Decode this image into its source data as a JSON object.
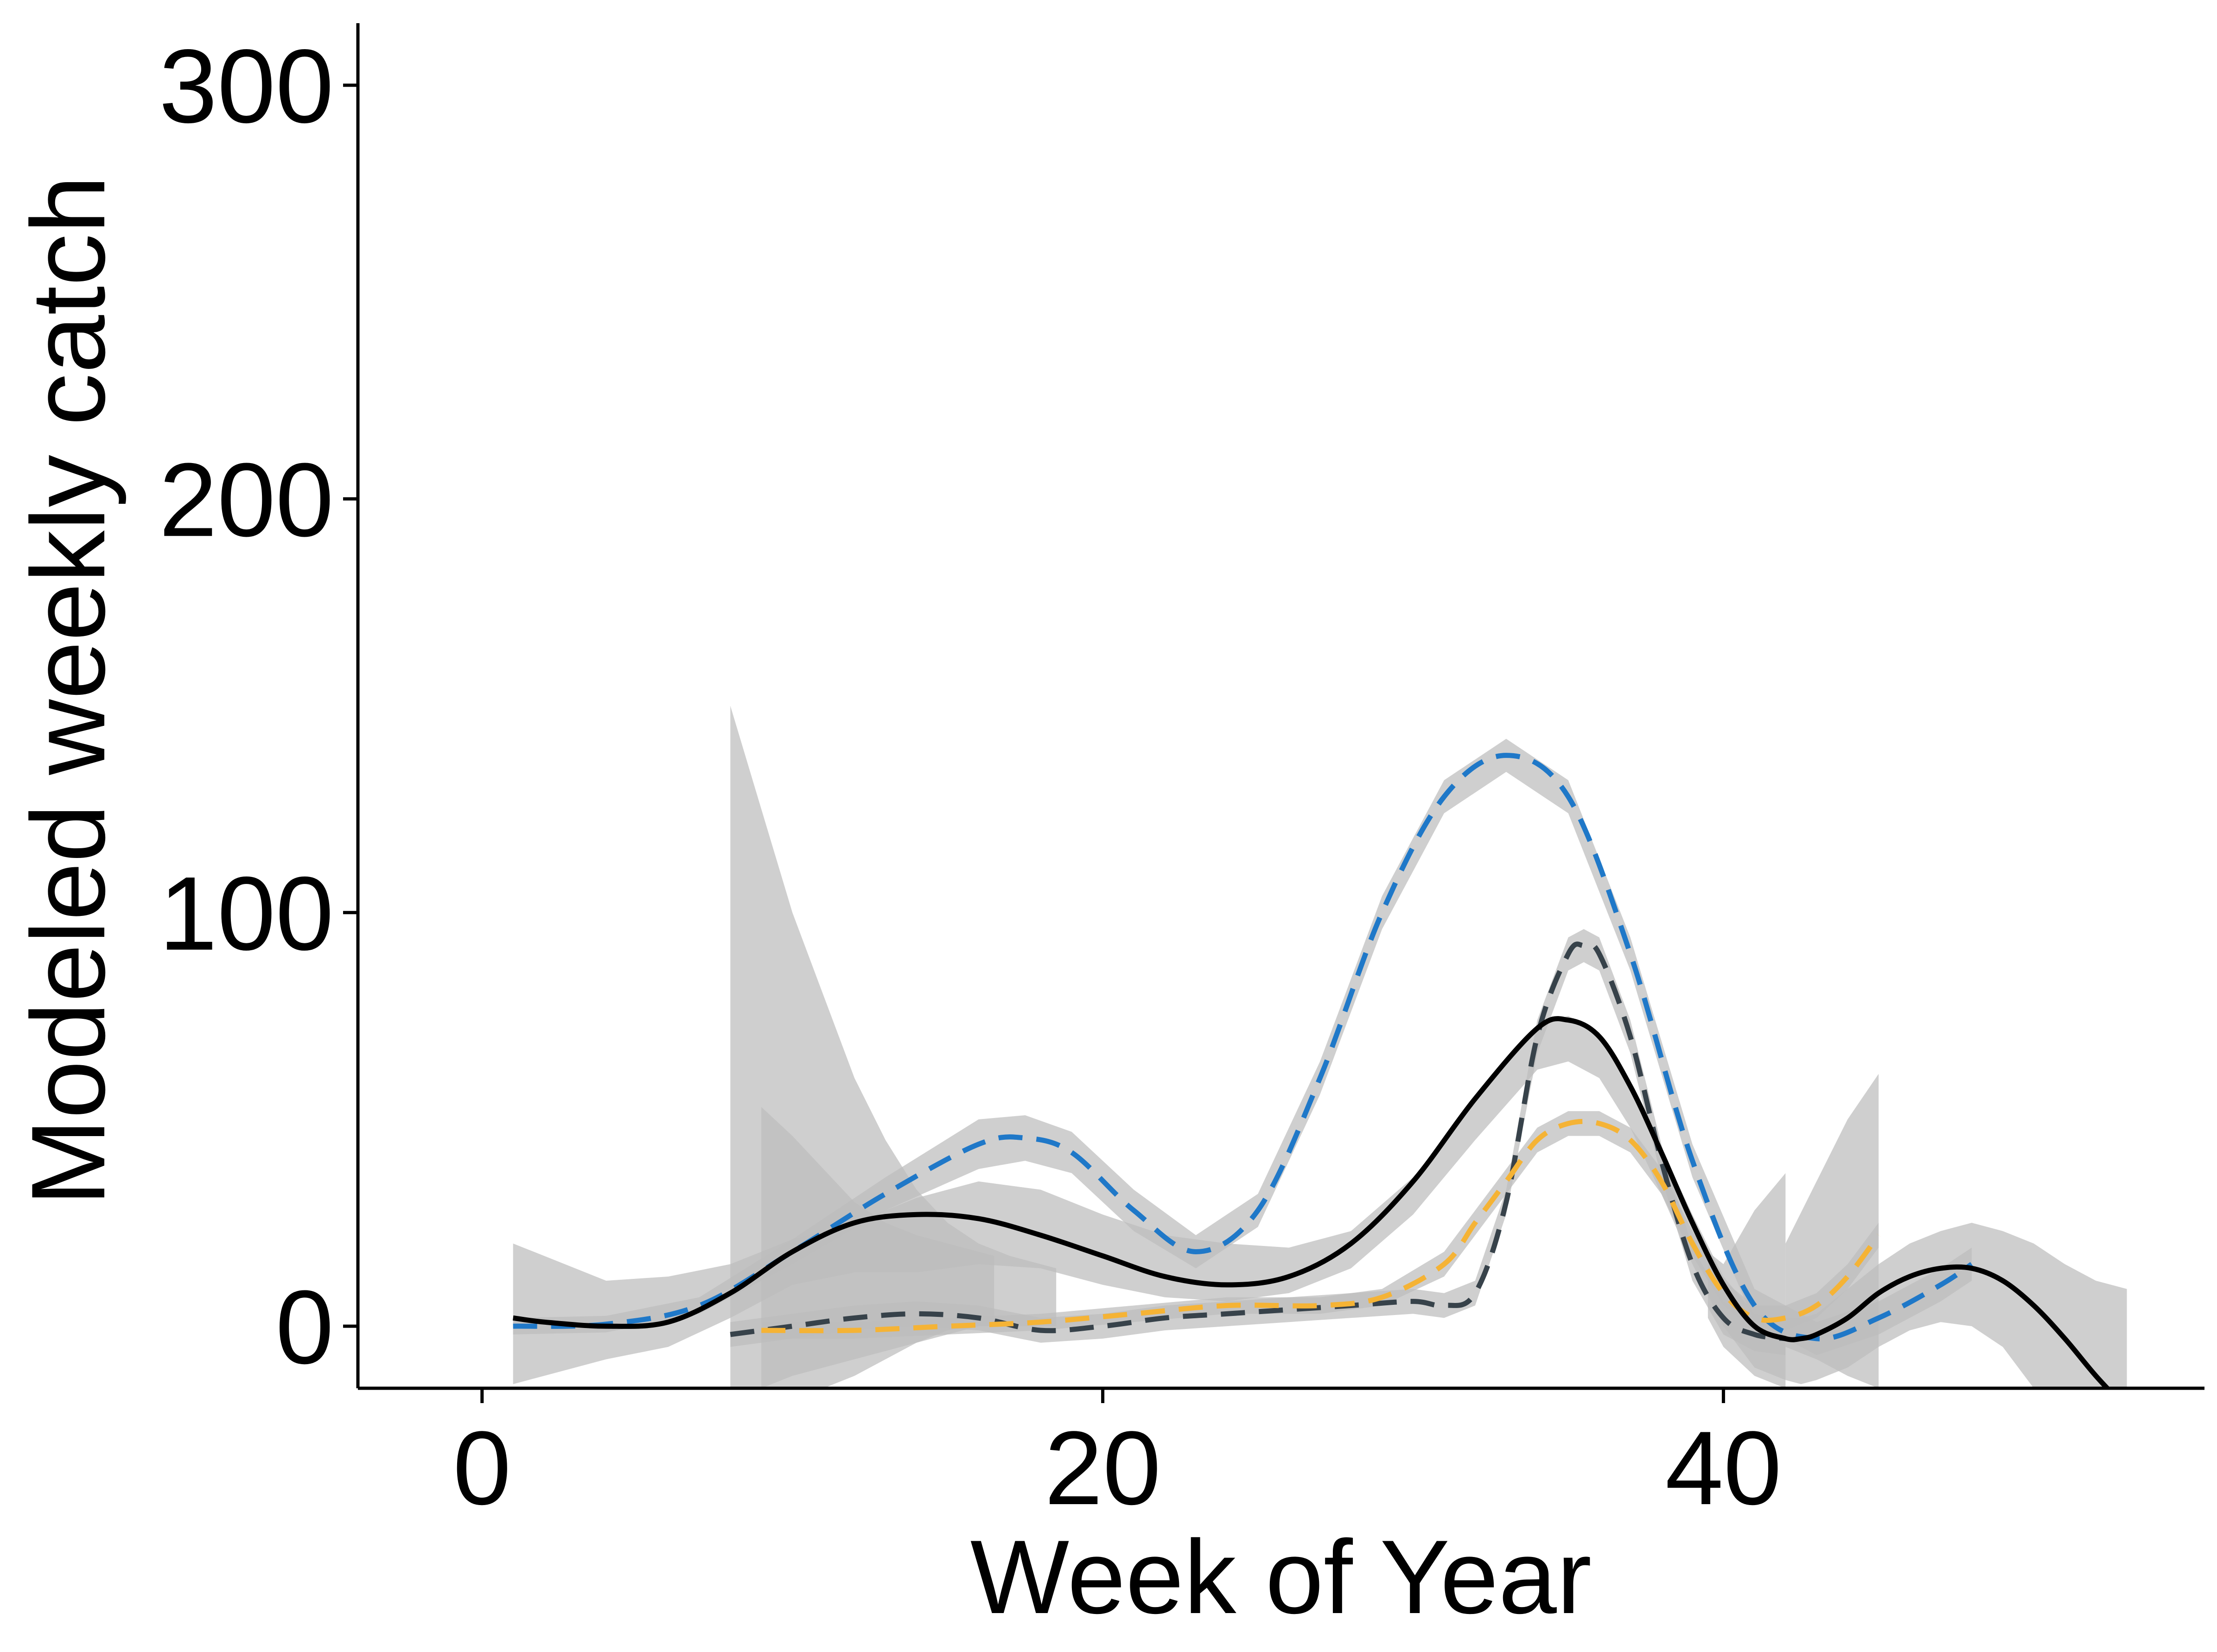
{
  "colors": {
    "ribbon": "#bdbdbd",
    "axis": "#000000",
    "series_blue": "#1f78c8",
    "series_dark": "#37424a",
    "series_orange": "#f5b335",
    "series_black": "#000000"
  },
  "chart_data": {
    "type": "line",
    "title": "",
    "xlabel": "Week of Year",
    "ylabel": "Modeled weekly catch",
    "xlim": [
      -4,
      55.5
    ],
    "ylim": [
      -15,
      315
    ],
    "x_ticks": [
      0,
      20,
      40
    ],
    "y_ticks": [
      0,
      100,
      200,
      300
    ],
    "grid": false,
    "legend": "none",
    "series": [
      {
        "color": "#1f78c8",
        "line": "dashed",
        "x": [
          1,
          4,
          7,
          10,
          13,
          16,
          17.5,
          19,
          21,
          23,
          25,
          27,
          29,
          31,
          33,
          35,
          37,
          39,
          41,
          43,
          45,
          47,
          48
        ],
        "y": [
          0,
          0.5,
          5,
          18,
          32,
          44,
          45.5,
          42,
          28,
          18,
          28,
          60,
          100,
          128,
          138,
          128,
          90,
          40,
          5,
          -3,
          2,
          10,
          15
        ],
        "band": [
          [
            1,
            -2,
            2
          ],
          [
            4,
            -1.5,
            2.5
          ],
          [
            7,
            3,
            7
          ],
          [
            10,
            15,
            21
          ],
          [
            13,
            28,
            36
          ],
          [
            16,
            38,
            50
          ],
          [
            17.5,
            40,
            51
          ],
          [
            19,
            37,
            47
          ],
          [
            21,
            23,
            33
          ],
          [
            23,
            14,
            22
          ],
          [
            25,
            24,
            32
          ],
          [
            27,
            56,
            64
          ],
          [
            29,
            96,
            104
          ],
          [
            31,
            124,
            132
          ],
          [
            33,
            134,
            142
          ],
          [
            35,
            124,
            132
          ],
          [
            37,
            86,
            94
          ],
          [
            39,
            36,
            44
          ],
          [
            41,
            1,
            9
          ],
          [
            43,
            -7,
            1
          ],
          [
            45,
            -2,
            6
          ],
          [
            47,
            6,
            14
          ],
          [
            48,
            11,
            19
          ]
        ]
      },
      {
        "color": "#37424a",
        "line": "dashed",
        "x": [
          8,
          10,
          12,
          14,
          16,
          18,
          20,
          22,
          24,
          26,
          28,
          30,
          31,
          32,
          33,
          34,
          35,
          35.5,
          36,
          37,
          38,
          39,
          40,
          41,
          42
        ],
        "y": [
          -2,
          0,
          2,
          3,
          2,
          -1,
          0,
          2,
          3,
          4,
          5,
          6,
          5,
          8,
          30,
          70,
          90,
          92,
          90,
          70,
          40,
          15,
          2,
          -2,
          -3
        ],
        "band": [
          [
            8,
            -5,
            1
          ],
          [
            10,
            -3,
            3
          ],
          [
            12,
            -1,
            5
          ],
          [
            14,
            0,
            6
          ],
          [
            16,
            -1,
            5
          ],
          [
            18,
            -4,
            2
          ],
          [
            20,
            -3,
            3
          ],
          [
            22,
            -1,
            5
          ],
          [
            24,
            0,
            6
          ],
          [
            26,
            1,
            7
          ],
          [
            28,
            2,
            8
          ],
          [
            30,
            3,
            9
          ],
          [
            31,
            2,
            8
          ],
          [
            32,
            5,
            11
          ],
          [
            33,
            27,
            33
          ],
          [
            34,
            66,
            74
          ],
          [
            35,
            86,
            94
          ],
          [
            35.5,
            88,
            96
          ],
          [
            36,
            86,
            94
          ],
          [
            37,
            66,
            74
          ],
          [
            38,
            36,
            44
          ],
          [
            39,
            11,
            19
          ],
          [
            40,
            -2,
            6
          ],
          [
            41,
            -6,
            2
          ],
          [
            42,
            -7,
            1
          ]
        ]
      },
      {
        "color": "#f5b335",
        "line": "dashed",
        "x": [
          9,
          12,
          15,
          18,
          21,
          24,
          27,
          29,
          31,
          32,
          33,
          34,
          35,
          36,
          37,
          38,
          39,
          40,
          41,
          42,
          43,
          44,
          45
        ],
        "y": [
          -1,
          -1,
          0,
          1,
          3,
          5,
          5,
          7,
          15,
          25,
          35,
          45,
          49,
          49,
          45,
          35,
          20,
          8,
          2,
          2,
          5,
          12,
          22
        ],
        "band": [
          [
            9,
            -3,
            1
          ],
          [
            12,
            -3,
            1
          ],
          [
            15,
            -2,
            2
          ],
          [
            18,
            -1,
            3
          ],
          [
            21,
            1,
            5
          ],
          [
            24,
            3,
            7
          ],
          [
            27,
            3,
            7
          ],
          [
            29,
            5,
            9
          ],
          [
            31,
            12,
            18
          ],
          [
            32,
            22,
            28
          ],
          [
            33,
            32,
            38
          ],
          [
            34,
            42,
            48
          ],
          [
            35,
            46,
            52
          ],
          [
            36,
            46,
            52
          ],
          [
            37,
            42,
            48
          ],
          [
            38,
            32,
            38
          ],
          [
            39,
            17,
            23
          ],
          [
            40,
            5,
            11
          ],
          [
            41,
            -1,
            5
          ],
          [
            42,
            -1,
            5
          ],
          [
            43,
            2,
            8
          ],
          [
            44,
            9,
            15
          ],
          [
            45,
            19,
            25
          ]
        ]
      },
      {
        "color": "#000000",
        "line": "solid",
        "x": [
          1,
          2,
          4,
          6,
          8,
          10,
          12,
          14,
          16,
          18,
          20,
          22,
          24,
          26,
          28,
          30,
          32,
          34,
          35,
          36,
          37,
          38,
          39,
          40,
          41,
          42,
          42.5,
          43,
          44,
          45,
          46,
          47,
          48,
          49,
          50,
          51,
          52,
          53
        ],
        "y": [
          2,
          1,
          0,
          1,
          8,
          18,
          25,
          27,
          26,
          22,
          17,
          12,
          10,
          12,
          20,
          35,
          55,
          72,
          74,
          70,
          58,
          42,
          25,
          10,
          0,
          -3,
          -3,
          -2,
          2,
          8,
          12,
          14,
          14,
          11,
          5,
          -3,
          -12,
          -20
        ],
        "band": [
          [
            1,
            -14,
            20
          ],
          [
            2,
            -12,
            17
          ],
          [
            4,
            -8,
            11
          ],
          [
            6,
            -5,
            12
          ],
          [
            8,
            2,
            15
          ],
          [
            10,
            10,
            21
          ],
          [
            12,
            13,
            25
          ],
          [
            14,
            13,
            31
          ],
          [
            16,
            15,
            35
          ],
          [
            18,
            14,
            33
          ],
          [
            20,
            10,
            27
          ],
          [
            22,
            7,
            22
          ],
          [
            24,
            6,
            20
          ],
          [
            26,
            8,
            19
          ],
          [
            28,
            14,
            23
          ],
          [
            30,
            27,
            36
          ],
          [
            32,
            45,
            54
          ],
          [
            34,
            62,
            73
          ],
          [
            35,
            64,
            75
          ],
          [
            36,
            60,
            71
          ],
          [
            37,
            48,
            59
          ],
          [
            38,
            32,
            43
          ],
          [
            39,
            15,
            27
          ],
          [
            40,
            0,
            12
          ],
          [
            41,
            -10,
            3
          ],
          [
            42,
            -13,
            2
          ],
          [
            42.5,
            -14,
            2
          ],
          [
            43,
            -13,
            3
          ],
          [
            44,
            -10,
            9
          ],
          [
            45,
            -5,
            15
          ],
          [
            46,
            -1,
            20
          ],
          [
            47,
            1,
            23
          ],
          [
            48,
            0,
            25
          ],
          [
            49,
            -5,
            23
          ],
          [
            50,
            -15,
            20
          ],
          [
            51,
            -30,
            15
          ],
          [
            52,
            -45,
            11
          ],
          [
            53,
            -60,
            9
          ]
        ]
      }
    ],
    "extra_ribbons": [
      [
        [
          8,
          -20,
          150
        ],
        [
          9,
          -15,
          125
        ],
        [
          10,
          -12,
          100
        ],
        [
          11,
          -10,
          80
        ],
        [
          12,
          -8,
          60
        ],
        [
          13,
          -6,
          45
        ],
        [
          14,
          -4,
          33
        ],
        [
          15,
          -2,
          25
        ],
        [
          16,
          0,
          20
        ],
        [
          17,
          0,
          17
        ],
        [
          18,
          0,
          15
        ],
        [
          18.5,
          0,
          14
        ]
      ],
      [
        [
          9,
          -20,
          53
        ],
        [
          10,
          -18,
          46
        ],
        [
          11,
          -15,
          38
        ],
        [
          12,
          -12,
          30
        ],
        [
          13,
          -8,
          25
        ],
        [
          14,
          -4,
          22
        ],
        [
          15,
          -1,
          20
        ],
        [
          16,
          0,
          18
        ],
        [
          16.5,
          0,
          17
        ]
      ],
      [
        [
          39.5,
          2,
          18
        ],
        [
          40,
          -5,
          15
        ],
        [
          41,
          -12,
          28
        ],
        [
          42,
          -15,
          37
        ],
        [
          42,
          5,
          5
        ]
      ],
      [
        [
          42,
          -5,
          20
        ],
        [
          43,
          -8,
          35
        ],
        [
          44,
          -12,
          50
        ],
        [
          45,
          -15,
          61
        ]
      ]
    ]
  }
}
